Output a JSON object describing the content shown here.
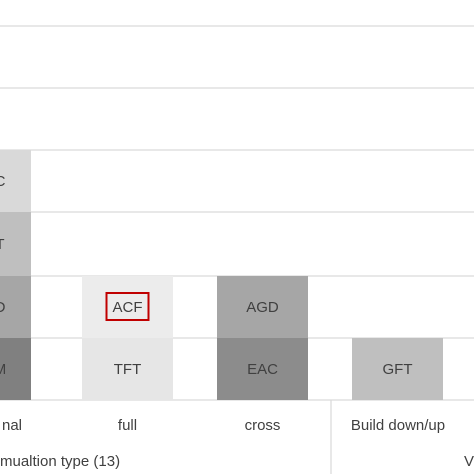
{
  "chart_data": {
    "type": "table",
    "title": "",
    "rows_from_bottom": 4,
    "columns": [
      {
        "category": "nal",
        "cells": [
          {
            "label": "M",
            "color": "#808080"
          },
          {
            "label": "D",
            "color": "#a6a6a6"
          },
          {
            "label": "T",
            "color": "#bfbfbf"
          },
          {
            "label": "C",
            "color": "#d9d9d9"
          }
        ]
      },
      {
        "category": "full",
        "cells": [
          {
            "label": "TFT",
            "color": "#e6e6e6"
          },
          {
            "label": "ACF",
            "color": "#ececec",
            "highlight": "#c00000"
          }
        ]
      },
      {
        "category": "cross",
        "cells": [
          {
            "label": "EAC",
            "color": "#8c8c8c"
          },
          {
            "label": "AGD",
            "color": "#a6a6a6"
          }
        ]
      },
      {
        "category": "Build down/up",
        "cells": [
          {
            "label": "GFT",
            "color": "#bfbfbf"
          }
        ]
      }
    ],
    "groups": [
      {
        "label": "mualtion type (13)"
      },
      {
        "label": "V"
      }
    ],
    "colors": {
      "gridline": "#d9d9d9",
      "text": "#404040",
      "highlight": "#c00000"
    }
  }
}
